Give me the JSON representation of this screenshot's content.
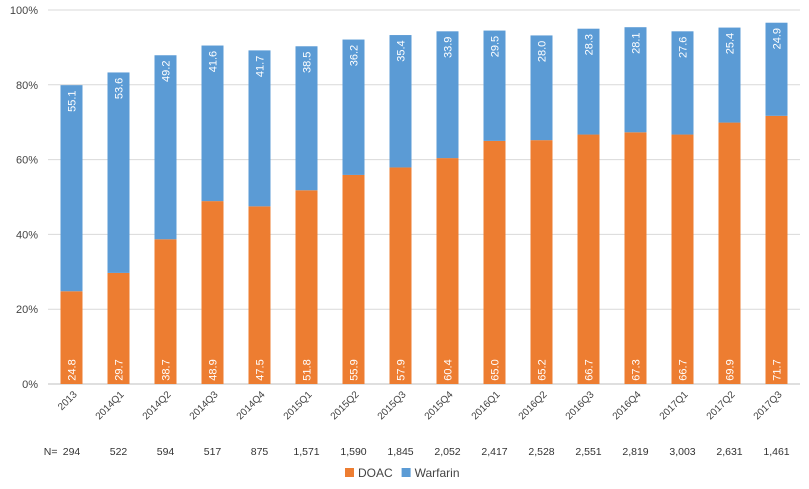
{
  "chart_data": {
    "type": "bar",
    "stacked": true,
    "title": "",
    "xlabel": "",
    "ylabel": "",
    "ylim": [
      0,
      100
    ],
    "yticks": [
      "0%",
      "20%",
      "40%",
      "60%",
      "80%",
      "100%"
    ],
    "categories": [
      "2013",
      "2014Q1",
      "2014Q2",
      "2014Q3",
      "2014Q4",
      "2015Q1",
      "2015Q2",
      "2015Q3",
      "2015Q4",
      "2016Q1",
      "2016Q2",
      "2016Q3",
      "2016Q4",
      "2017Q1",
      "2017Q2",
      "2017Q3"
    ],
    "series": [
      {
        "name": "DOAC",
        "color": "#ED7D31",
        "values": [
          24.8,
          29.7,
          38.7,
          48.9,
          47.5,
          51.8,
          55.9,
          57.9,
          60.4,
          65.0,
          65.2,
          66.7,
          67.3,
          66.7,
          69.9,
          71.7
        ],
        "labels": [
          "24.8",
          "29.7",
          "38.7",
          "48.9",
          "47.5",
          "51.8",
          "55.9",
          "57.9",
          "60.4",
          "65.0",
          "65.2",
          "66.7",
          "67.3",
          "66.7",
          "69.9",
          "71.7"
        ]
      },
      {
        "name": "Warfarin",
        "color": "#5B9BD5",
        "values": [
          55.1,
          53.6,
          49.2,
          41.6,
          41.7,
          38.5,
          36.2,
          35.4,
          33.9,
          29.5,
          28.0,
          28.3,
          28.1,
          27.6,
          25.4,
          24.9
        ],
        "labels": [
          "55.1",
          "53.6",
          "49.2",
          "41.6",
          "41.7",
          "38.5",
          "36.2",
          "35.4",
          "33.9",
          "29.5",
          "28.0",
          "28.3",
          "28.1",
          "27.6",
          "25.4",
          "24.9"
        ]
      }
    ],
    "n_prefix": "N=",
    "n_values": [
      "294",
      "522",
      "594",
      "517",
      "875",
      "1,571",
      "1,590",
      "1,845",
      "2,052",
      "2,417",
      "2,528",
      "2,551",
      "2,819",
      "3,003",
      "2,631",
      "1,461"
    ],
    "legend_position": "bottom-center",
    "grid": true
  }
}
